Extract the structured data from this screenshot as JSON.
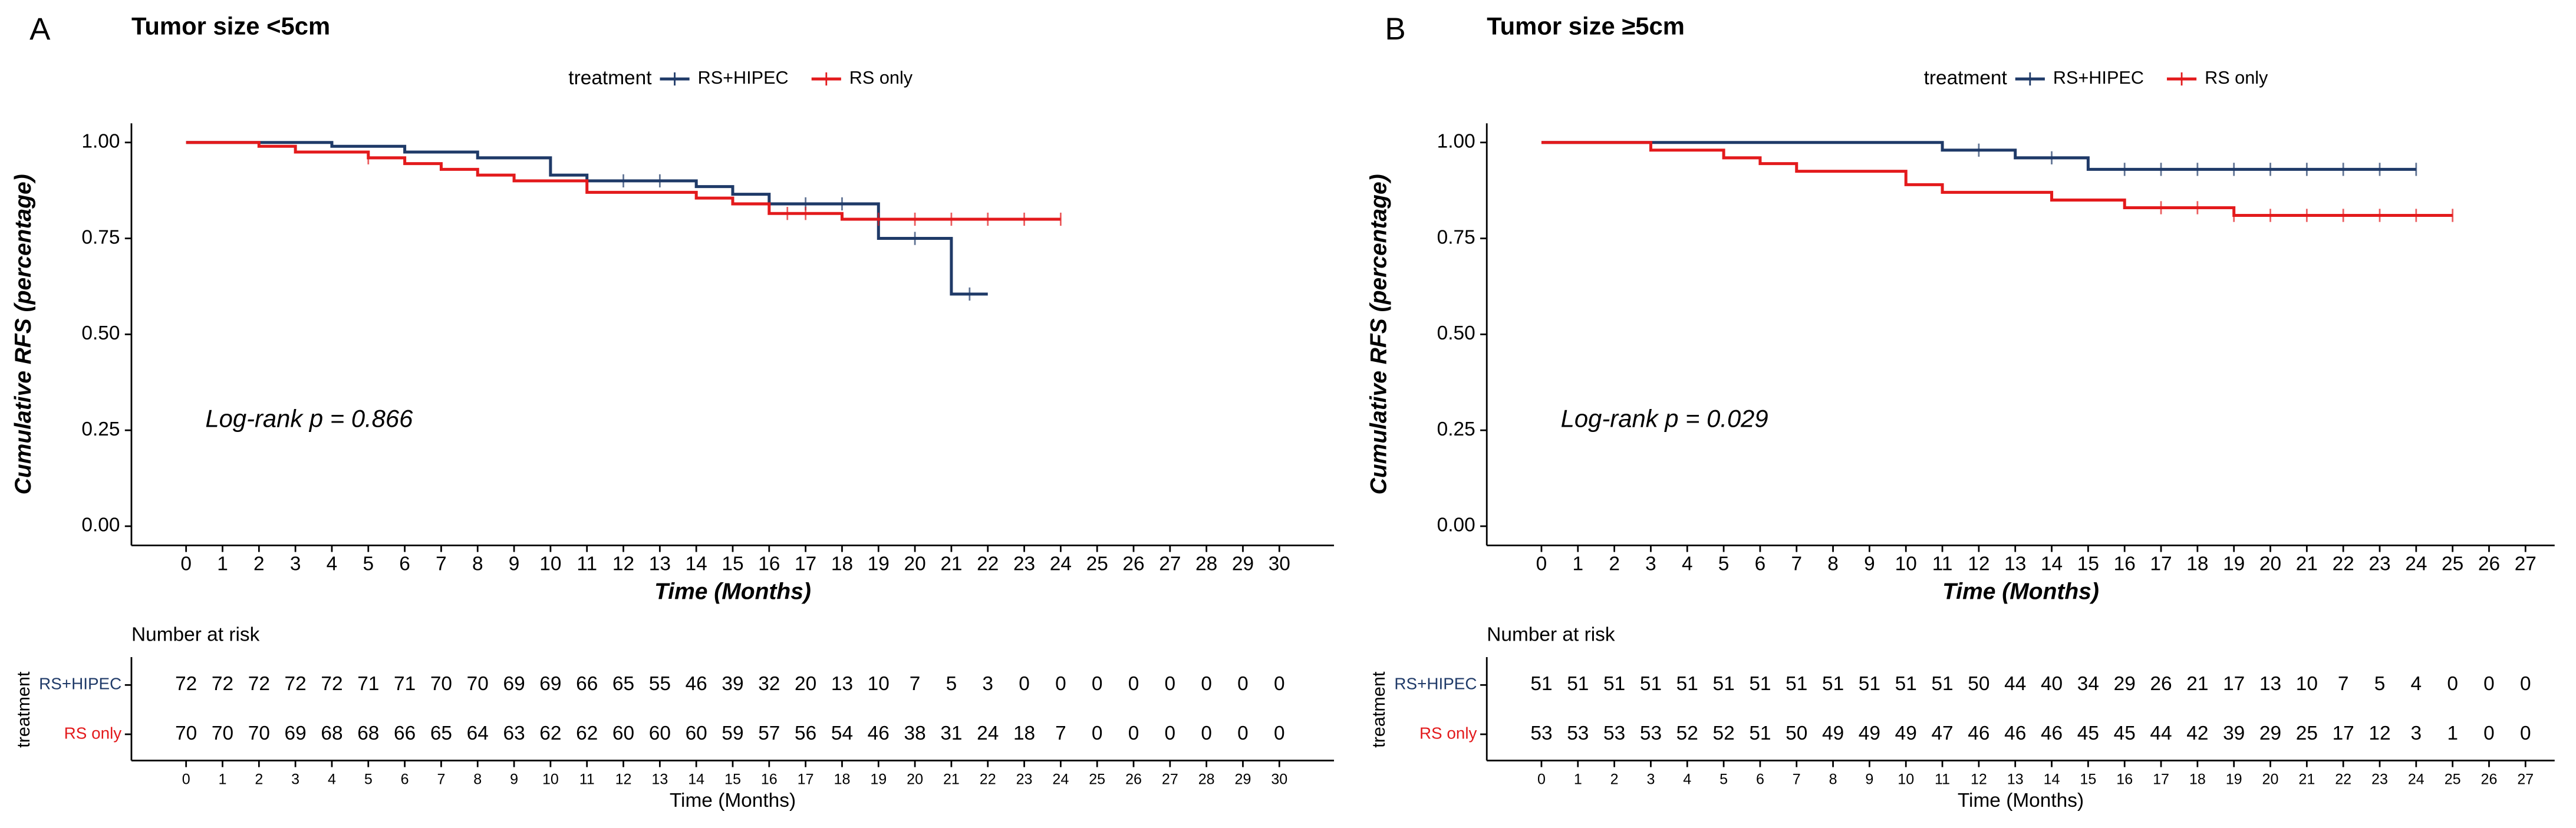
{
  "chart_data": [
    {
      "type": "km",
      "panel_label": "A",
      "title": "Tumor size <5cm",
      "legend_title": "treatment",
      "xlabel": "Time (Months)",
      "ylabel": "Cumulative RFS (percentage)",
      "annotation": "Log-rank  p = 0.866",
      "xlim": [
        -1.5,
        31.5
      ],
      "ylim": [
        -0.05,
        1.05
      ],
      "xticks": [
        0,
        1,
        2,
        3,
        4,
        5,
        6,
        7,
        8,
        9,
        10,
        11,
        12,
        13,
        14,
        15,
        16,
        17,
        18,
        19,
        20,
        21,
        22,
        23,
        24,
        25,
        26,
        27,
        28,
        29,
        30
      ],
      "yticks": [
        {
          "value": 0,
          "label": "0.00"
        },
        {
          "value": 0.25,
          "label": "0.25"
        },
        {
          "value": 0.5,
          "label": "0.50"
        },
        {
          "value": 0.75,
          "label": "0.75"
        },
        {
          "value": 1,
          "label": "1.00"
        }
      ],
      "series": [
        {
          "name": "RS+HIPEC",
          "color": "#1f3a68",
          "x": [
            0,
            4,
            6,
            8,
            10,
            11,
            14,
            15,
            16,
            19,
            21,
            22
          ],
          "values": [
            1,
            0.99,
            0.975,
            0.96,
            0.915,
            0.9,
            0.885,
            0.865,
            0.84,
            0.75,
            0.605,
            0.605
          ],
          "censor_x": [
            12,
            13,
            17,
            18,
            20,
            21.5
          ],
          "censor_values": [
            0.9,
            0.9,
            0.84,
            0.84,
            0.75,
            0.605
          ]
        },
        {
          "name": "RS only",
          "color": "#e31a1c",
          "x": [
            0,
            2,
            3,
            5,
            6,
            7,
            8,
            9,
            11,
            14,
            15,
            16,
            18,
            24
          ],
          "values": [
            1,
            0.99,
            0.975,
            0.96,
            0.945,
            0.93,
            0.915,
            0.9,
            0.87,
            0.855,
            0.84,
            0.815,
            0.8,
            0.8
          ],
          "censor_x": [
            5,
            16.5,
            17,
            19,
            20,
            21,
            22,
            23,
            24
          ],
          "censor_values": [
            0.96,
            0.815,
            0.815,
            0.8,
            0.8,
            0.8,
            0.8,
            0.8,
            0.8
          ]
        }
      ],
      "risk_table": {
        "title": "Number at risk",
        "ylabel": "treatment",
        "xlabel": "Time (Months)",
        "rows": [
          {
            "name": "RS+HIPEC",
            "color": "#1f3a68",
            "values": [
              "72",
              "72",
              "72",
              "72",
              "72",
              "71",
              "71",
              "70",
              "70",
              "69",
              "69",
              "66",
              "65",
              "55",
              "46",
              "39",
              "32",
              "20",
              "13",
              "10",
              "7",
              "5",
              "3",
              "0",
              "0",
              "0",
              "0",
              "0",
              "0",
              "0",
              "0"
            ]
          },
          {
            "name": "RS only",
            "color": "#e31a1c",
            "values": [
              "70",
              "70",
              "70",
              "69",
              "68",
              "68",
              "66",
              "65",
              "64",
              "63",
              "62",
              "62",
              "60",
              "60",
              "60",
              "59",
              "57",
              "56",
              "54",
              "46",
              "38",
              "31",
              "24",
              "18",
              "7",
              "0",
              "0",
              "0",
              "0",
              "0",
              "0"
            ]
          }
        ]
      }
    },
    {
      "type": "km",
      "panel_label": "B",
      "title": "Tumor size ≥5cm",
      "legend_title": "treatment",
      "xlabel": "Time (Months)",
      "ylabel": "Cumulative RFS (percentage)",
      "annotation": "Log-rank  p = 0.029",
      "xlim": [
        -1.5,
        27.8
      ],
      "ylim": [
        -0.05,
        1.05
      ],
      "xticks": [
        0,
        1,
        2,
        3,
        4,
        5,
        6,
        7,
        8,
        9,
        10,
        11,
        12,
        13,
        14,
        15,
        16,
        17,
        18,
        19,
        20,
        21,
        22,
        23,
        24,
        25,
        26,
        27
      ],
      "yticks": [
        {
          "value": 0,
          "label": "0.00"
        },
        {
          "value": 0.25,
          "label": "0.25"
        },
        {
          "value": 0.5,
          "label": "0.50"
        },
        {
          "value": 0.75,
          "label": "0.75"
        },
        {
          "value": 1,
          "label": "1.00"
        }
      ],
      "series": [
        {
          "name": "RS+HIPEC",
          "color": "#1f3a68",
          "x": [
            0,
            11,
            13,
            15,
            24
          ],
          "values": [
            1,
            0.98,
            0.96,
            0.93,
            0.93
          ],
          "censor_x": [
            12,
            14,
            16,
            17,
            18,
            19,
            20,
            21,
            22,
            23,
            24
          ],
          "censor_values": [
            0.98,
            0.96,
            0.93,
            0.93,
            0.93,
            0.93,
            0.93,
            0.93,
            0.93,
            0.93,
            0.93
          ]
        },
        {
          "name": "RS only",
          "color": "#e31a1c",
          "x": [
            0,
            3,
            5,
            6,
            7,
            10,
            11,
            14,
            16,
            19,
            25
          ],
          "values": [
            1,
            0.98,
            0.96,
            0.945,
            0.925,
            0.89,
            0.87,
            0.85,
            0.83,
            0.81,
            0.81
          ],
          "censor_x": [
            17,
            18,
            19,
            20,
            21,
            22,
            23,
            24,
            25
          ],
          "censor_values": [
            0.83,
            0.83,
            0.81,
            0.81,
            0.81,
            0.81,
            0.81,
            0.81,
            0.81
          ]
        }
      ],
      "risk_table": {
        "title": "Number at risk",
        "ylabel": "treatment",
        "xlabel": "Time (Months)",
        "rows": [
          {
            "name": "RS+HIPEC",
            "color": "#1f3a68",
            "values": [
              "51",
              "51",
              "51",
              "51",
              "51",
              "51",
              "51",
              "51",
              "51",
              "51",
              "51",
              "51",
              "50",
              "44",
              "40",
              "34",
              "29",
              "26",
              "21",
              "17",
              "13",
              "10",
              "7",
              "5",
              "4",
              "0",
              "0",
              "0"
            ]
          },
          {
            "name": "RS only",
            "color": "#e31a1c",
            "values": [
              "53",
              "53",
              "53",
              "53",
              "52",
              "52",
              "51",
              "50",
              "49",
              "49",
              "49",
              "47",
              "46",
              "46",
              "46",
              "45",
              "45",
              "44",
              "42",
              "39",
              "29",
              "25",
              "17",
              "12",
              "3",
              "1",
              "0",
              "0"
            ]
          }
        ]
      }
    }
  ]
}
